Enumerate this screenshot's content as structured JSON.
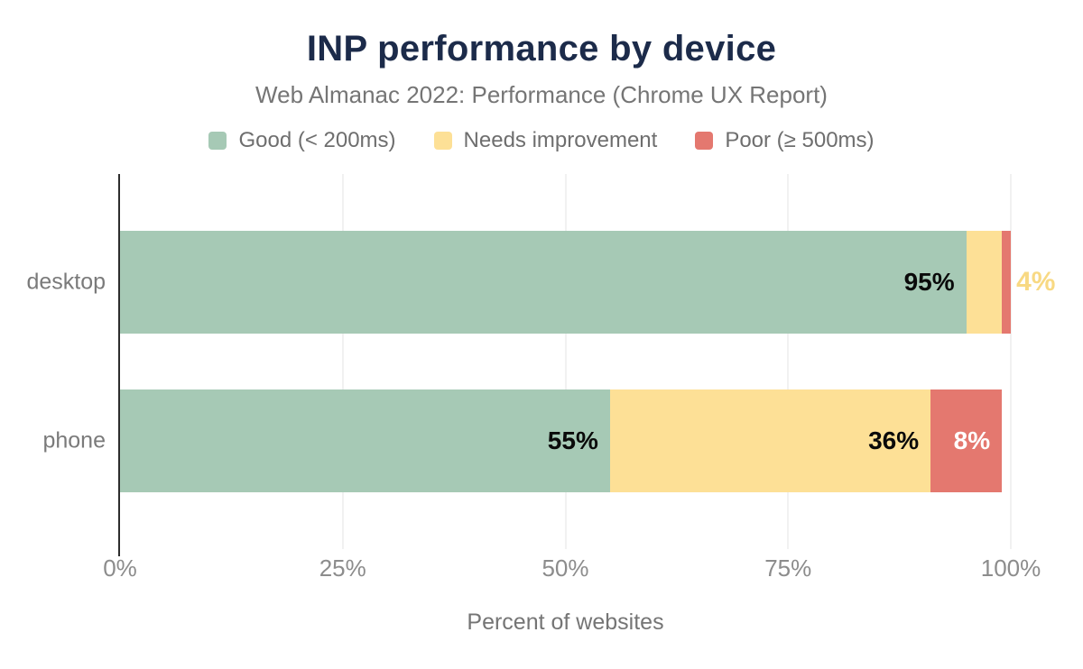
{
  "title": "INP performance by device",
  "subtitle": "Web Almanac 2022: Performance (Chrome UX Report)",
  "legend": [
    {
      "label": "Good (< 200ms)",
      "color": "#a6c9b5"
    },
    {
      "label": "Needs improvement",
      "color": "#fde096"
    },
    {
      "label": "Poor (≥ 500ms)",
      "color": "#e4786f"
    }
  ],
  "style": {
    "title_color": "#1c2b4a",
    "subtitle_color": "#757575",
    "gridline_color": "#f1f1f1",
    "axis_line_color": "#2d2d2d",
    "tick_label_color": "#8c8c8c"
  },
  "chart_data": {
    "type": "bar",
    "orientation": "horizontal",
    "stacked": true,
    "title": "INP performance by device",
    "subtitle": "Web Almanac 2022: Performance (Chrome UX Report)",
    "categories": [
      "desktop",
      "phone"
    ],
    "series": [
      {
        "name": "Good (< 200ms)",
        "color": "#a6c9b5",
        "values": [
          95,
          55
        ]
      },
      {
        "name": "Needs improvement",
        "color": "#fde096",
        "values": [
          4,
          36
        ]
      },
      {
        "name": "Poor (≥ 500ms)",
        "color": "#e4786f",
        "values": [
          1,
          8
        ]
      }
    ],
    "value_labels": [
      [
        {
          "text": "95%",
          "placement": "inside",
          "color": "#0a0a0a"
        },
        {
          "text": "4%",
          "placement": "outside",
          "color": "#f8d983"
        },
        {
          "text": "",
          "placement": "none",
          "color": ""
        }
      ],
      [
        {
          "text": "55%",
          "placement": "inside",
          "color": "#0a0a0a"
        },
        {
          "text": "36%",
          "placement": "inside",
          "color": "#0a0a0a"
        },
        {
          "text": "8%",
          "placement": "inside",
          "color": "#ffffff"
        }
      ]
    ],
    "xlabel": "Percent of websites",
    "x_ticks": [
      {
        "label": "0%",
        "value": 0
      },
      {
        "label": "25%",
        "value": 25
      },
      {
        "label": "50%",
        "value": 50
      },
      {
        "label": "75%",
        "value": 75
      },
      {
        "label": "100%",
        "value": 100
      }
    ],
    "xlim": [
      0,
      100
    ],
    "grid": true,
    "legend_position": "top"
  }
}
